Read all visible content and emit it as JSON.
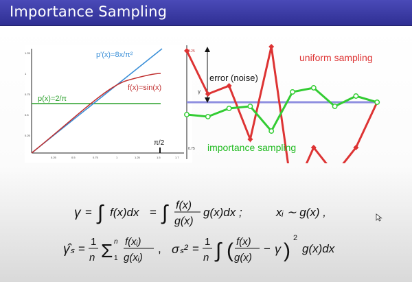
{
  "title": "Importance Sampling",
  "left_plot": {
    "labels": {
      "pprime": "p'(x)=8x/π²",
      "f": "f(x)=sin(x)",
      "p": "p(x)=2/π",
      "pi_half": "π/2"
    },
    "x_ticks": [
      "0.25",
      "0.5",
      "0.75",
      "1",
      "1.25",
      "1.5",
      "1.7"
    ],
    "y_ticks": [
      "1.25",
      "1",
      "0.75",
      "0.5",
      "0.25"
    ],
    "colors": {
      "pprime": "#3a8fd8",
      "f": "#c03030",
      "p": "#2aa02a"
    }
  },
  "right_plot": {
    "labels": {
      "uniform": "uniform sampling",
      "importance": "importance sampling",
      "error": "error (noise)",
      "gamma": "γ",
      "top_tick": "0.25",
      "bottom_tick": "0.75"
    },
    "uniform_values": [
      0.25,
      0.04,
      0.08,
      -0.18,
      0.27,
      -0.45,
      -0.22,
      -0.35,
      -0.22,
      0.0
    ],
    "importance_values": [
      -0.06,
      -0.07,
      -0.03,
      -0.02,
      -0.14,
      0.05,
      0.07,
      -0.02,
      0.03,
      0.0
    ],
    "colors": {
      "uniform": "#dd3333",
      "importance": "#33cc33",
      "baseline": "#8f8fe0"
    }
  },
  "formulas": {
    "line1": "γ = ∫ f(x)dx = ∫ f(x)/g(x) g(x)dx ; xᵢ ∼ g(x) ,",
    "line2": "γ̂ₛ = 1/n Σ₁ⁿ f(xᵢ)/g(xᵢ) , σₛ² = 1/n ∫ (f(x)/g(x) − γ)² g(x)dx"
  }
}
